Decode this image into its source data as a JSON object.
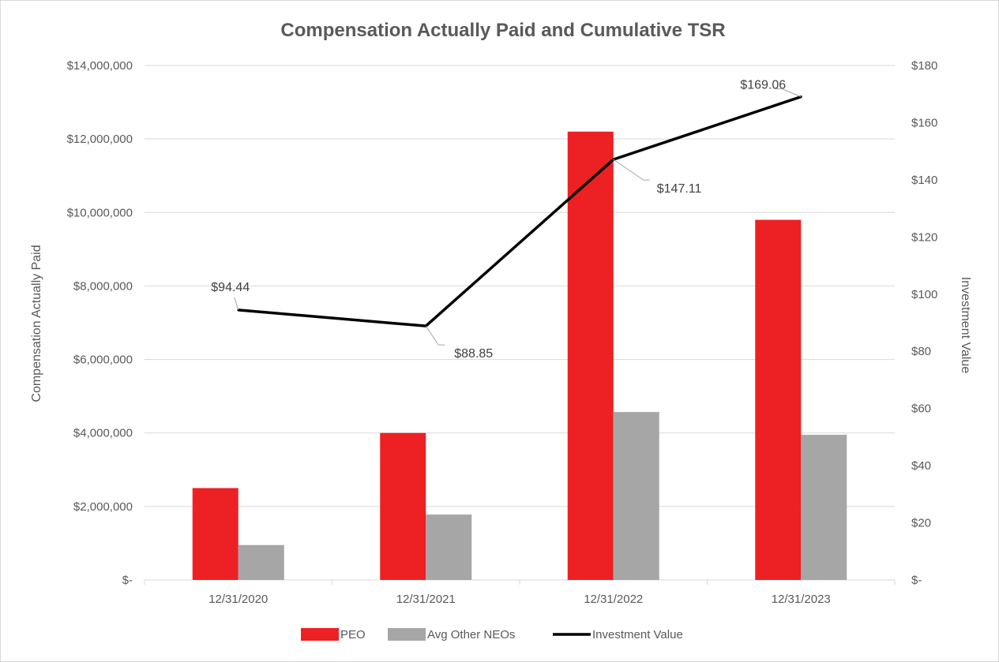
{
  "chart_data": {
    "type": "bar",
    "title": "Compensation Actually Paid and Cumulative TSR",
    "categories": [
      "12/31/2020",
      "12/31/2021",
      "12/31/2022",
      "12/31/2023"
    ],
    "ylabel": "Compensation Actually Paid",
    "y2label": "Investment Value",
    "ylim": [
      0,
      14000000
    ],
    "y2lim": [
      0,
      180
    ],
    "yticks": [
      {
        "value": 0,
        "label": "$-"
      },
      {
        "value": 2000000,
        "label": "$2,000,000"
      },
      {
        "value": 4000000,
        "label": "$4,000,000"
      },
      {
        "value": 6000000,
        "label": "$6,000,000"
      },
      {
        "value": 8000000,
        "label": "$8,000,000"
      },
      {
        "value": 10000000,
        "label": "$10,000,000"
      },
      {
        "value": 12000000,
        "label": "$12,000,000"
      },
      {
        "value": 14000000,
        "label": "$14,000,000"
      }
    ],
    "y2ticks": [
      {
        "value": 0,
        "label": "$-"
      },
      {
        "value": 20,
        "label": "$20"
      },
      {
        "value": 40,
        "label": "$40"
      },
      {
        "value": 60,
        "label": "$60"
      },
      {
        "value": 80,
        "label": "$80"
      },
      {
        "value": 100,
        "label": "$100"
      },
      {
        "value": 120,
        "label": "$120"
      },
      {
        "value": 140,
        "label": "$140"
      },
      {
        "value": 160,
        "label": "$160"
      },
      {
        "value": 180,
        "label": "$180"
      }
    ],
    "series": [
      {
        "name": "PEO",
        "type": "bar",
        "axis": "left",
        "color": "#ed2024",
        "values": [
          2500000,
          4000000,
          12200000,
          9800000
        ]
      },
      {
        "name": "Avg Other NEOs",
        "type": "bar",
        "axis": "left",
        "color": "#a6a6a6",
        "values": [
          950000,
          1780000,
          4570000,
          3950000
        ]
      },
      {
        "name": "Investment Value",
        "type": "line",
        "axis": "right",
        "color": "#000000",
        "values": [
          94.44,
          88.85,
          147.11,
          169.06
        ],
        "labels": [
          "$94.44",
          "$88.85",
          "$147.11",
          "$169.06"
        ]
      }
    ],
    "legend": "bottom",
    "grid": true
  }
}
